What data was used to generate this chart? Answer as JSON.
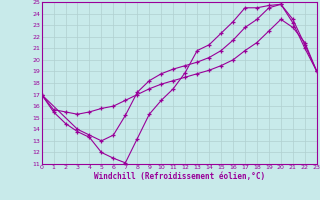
{
  "bg_color": "#c8eaea",
  "line_color": "#990099",
  "grid_color": "#b0d0d0",
  "xlim": [
    0,
    23
  ],
  "ylim": [
    11,
    25
  ],
  "xticks": [
    0,
    1,
    2,
    3,
    4,
    5,
    6,
    7,
    8,
    9,
    10,
    11,
    12,
    13,
    14,
    15,
    16,
    17,
    18,
    19,
    20,
    21,
    22,
    23
  ],
  "yticks": [
    11,
    12,
    13,
    14,
    15,
    16,
    17,
    18,
    19,
    20,
    21,
    22,
    23,
    24,
    25
  ],
  "xlabel": "Windchill (Refroidissement éolien,°C)",
  "curve1_x": [
    0,
    1,
    2,
    3,
    4,
    5,
    6,
    7,
    8,
    9,
    10,
    11,
    12,
    13,
    14,
    15,
    16,
    17,
    18,
    19,
    20,
    21,
    22,
    23
  ],
  "curve1_y": [
    17.0,
    15.5,
    14.5,
    13.8,
    13.3,
    12.0,
    11.5,
    11.1,
    13.2,
    15.3,
    16.5,
    17.5,
    18.9,
    20.8,
    21.3,
    22.3,
    23.3,
    24.5,
    24.5,
    24.7,
    24.8,
    23.2,
    21.0,
    19.0
  ],
  "curve2_x": [
    0,
    3,
    4,
    5,
    6,
    7,
    8,
    9,
    10,
    11,
    12,
    13,
    14,
    15,
    16,
    17,
    18,
    19,
    20,
    21,
    22,
    23
  ],
  "curve2_y": [
    17.0,
    14.0,
    13.5,
    13.0,
    13.5,
    15.2,
    17.2,
    18.2,
    18.8,
    19.2,
    19.5,
    19.8,
    20.2,
    20.8,
    21.7,
    22.8,
    23.5,
    24.5,
    24.8,
    23.5,
    21.3,
    19.0
  ],
  "curve3_x": [
    0,
    1,
    2,
    3,
    4,
    5,
    6,
    7,
    8,
    9,
    10,
    11,
    12,
    13,
    14,
    15,
    16,
    17,
    18,
    19,
    20,
    21,
    22,
    23
  ],
  "curve3_y": [
    17.0,
    15.7,
    15.5,
    15.3,
    15.5,
    15.8,
    16.0,
    16.5,
    17.0,
    17.5,
    17.9,
    18.2,
    18.5,
    18.8,
    19.1,
    19.5,
    20.0,
    20.8,
    21.5,
    22.5,
    23.5,
    22.8,
    21.5,
    19.0
  ]
}
